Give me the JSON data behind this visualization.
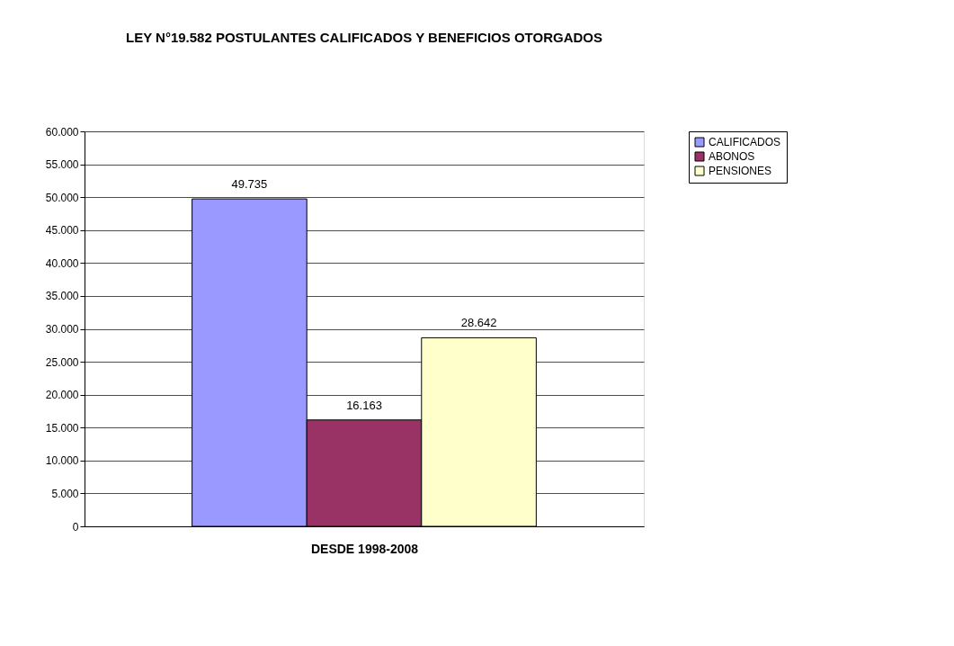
{
  "chart_data": {
    "type": "bar",
    "title": "LEY N°19.582 POSTULANTES  CALIFICADOS Y BENEFICIOS  OTORGADOS",
    "xlabel": "DESDE 1998-2008",
    "categories": [
      null
    ],
    "series": [
      {
        "name": "CALIFICADOS",
        "color": "#9999ff",
        "values": [
          49735
        ],
        "value_labels": [
          "49.735"
        ]
      },
      {
        "name": "ABONOS",
        "color": "#993366",
        "values": [
          16163
        ],
        "value_labels": [
          "16.163"
        ]
      },
      {
        "name": "PENSIONES",
        "color": "#ffffcc",
        "values": [
          28642
        ],
        "value_labels": [
          "28.642"
        ]
      }
    ],
    "ylim": [
      0,
      60000
    ],
    "yticks": [
      0,
      {
        "value": 5000,
        "label": "5.000"
      },
      {
        "value": 10000,
        "label": "10.000"
      },
      {
        "value": 15000,
        "label": "15.000"
      },
      {
        "value": 20000,
        "label": "20.000"
      },
      {
        "value": 25000,
        "label": "25.000"
      },
      {
        "value": 30000,
        "label": "30.000"
      },
      {
        "value": 35000,
        "label": "35.000"
      },
      {
        "value": 40000,
        "label": "40.000"
      },
      {
        "value": 45000,
        "label": "45.000"
      },
      {
        "value": 50000,
        "label": "50.000"
      },
      {
        "value": 55000,
        "label": "55.000"
      },
      {
        "value": 60000,
        "label": "60.000"
      }
    ],
    "grid": "y",
    "legend": "right"
  }
}
